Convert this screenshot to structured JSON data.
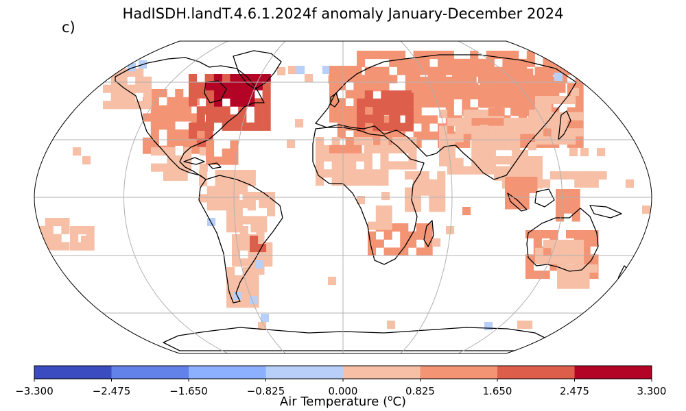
{
  "figure": {
    "title": "HadISDH.landT.4.6.1.2024f anomaly January-December 2024",
    "panel_label": "c)"
  },
  "colorbar": {
    "label_prefix": "Air Temperature (",
    "label_unit_sup": "o",
    "label_suffix": "C)",
    "ticks": [
      "−3.300",
      "−2.475",
      "−1.650",
      "−0.825",
      "0.000",
      "0.825",
      "1.650",
      "2.475",
      "3.300"
    ],
    "colors": [
      "#3b4cc0",
      "#6282ea",
      "#8caffe",
      "#b7cff9",
      "#f6bfa6",
      "#f39475",
      "#dd5f4b",
      "#b40426"
    ]
  },
  "map": {
    "projection": "Robinson",
    "legend": [
      {
        "class": "-3",
        "color": "#3b4cc0"
      },
      {
        "class": "-2",
        "color": "#6282ea"
      },
      {
        "class": "-1",
        "color": "#8caffe"
      },
      {
        "class": "0",
        "color": "#b7cff9"
      },
      {
        "class": "1",
        "color": "#f6bfa6"
      },
      {
        "class": "2",
        "color": "#f39475"
      },
      {
        "class": "3",
        "color": "#dd5f4b"
      },
      {
        "class": "4",
        "color": "#b40426"
      }
    ]
  }
}
